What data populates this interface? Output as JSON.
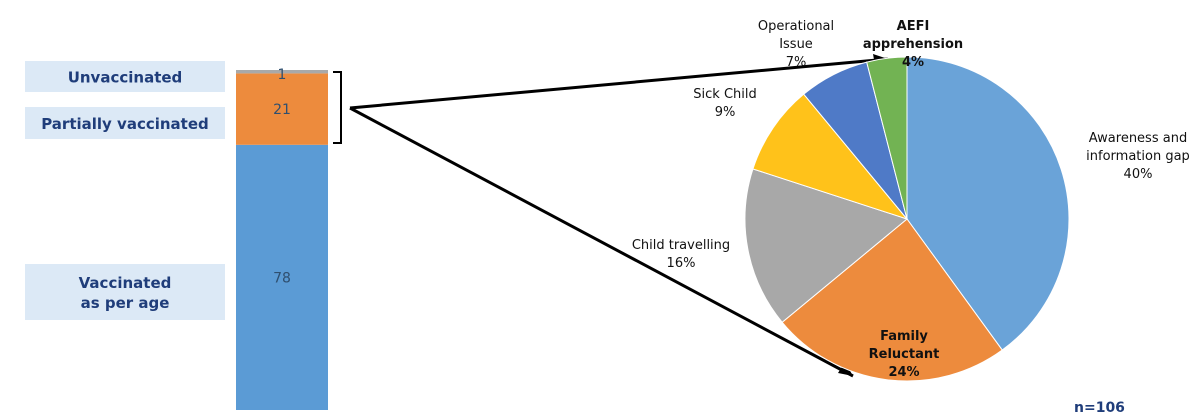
{
  "chart_data": [
    {
      "type": "bar",
      "stacked": true,
      "orientation": "vertical",
      "categories": [
        "Vaccinated as per age",
        "Partially vaccinated",
        "Unvaccinated"
      ],
      "labels": [
        [
          "Vaccinated",
          "as per age"
        ],
        [
          "Partially vaccinated"
        ],
        [
          "Unvaccinated"
        ]
      ],
      "values": [
        78,
        21,
        1
      ],
      "colors": [
        "#5b9bd5",
        "#ed8b3d",
        "#a9a9a9"
      ]
    },
    {
      "type": "pie",
      "slices": [
        {
          "label": [
            "Awareness and",
            "information gap"
          ],
          "value": 40,
          "value_label": "40%",
          "color": "#6aa3d8",
          "bold": false
        },
        {
          "label": [
            "Family",
            "Reluctant"
          ],
          "value": 24,
          "value_label": "24%",
          "color": "#ed8b3d",
          "bold": true
        },
        {
          "label": [
            "Child travelling"
          ],
          "value": 16,
          "value_label": "16%",
          "color": "#a8a8a8",
          "bold": false
        },
        {
          "label": [
            "Sick Child"
          ],
          "value": 9,
          "value_label": "9%",
          "color": "#ffc21a",
          "bold": false
        },
        {
          "label": [
            "Operational",
            "Issue"
          ],
          "value": 7,
          "value_label": "7%",
          "color": "#4f7ac7",
          "bold": false
        },
        {
          "label": [
            "AEFI",
            "apprehension"
          ],
          "value": 4,
          "value_label": "4%",
          "color": "#72b353",
          "bold": true
        }
      ]
    }
  ],
  "sample_note": "n=106"
}
